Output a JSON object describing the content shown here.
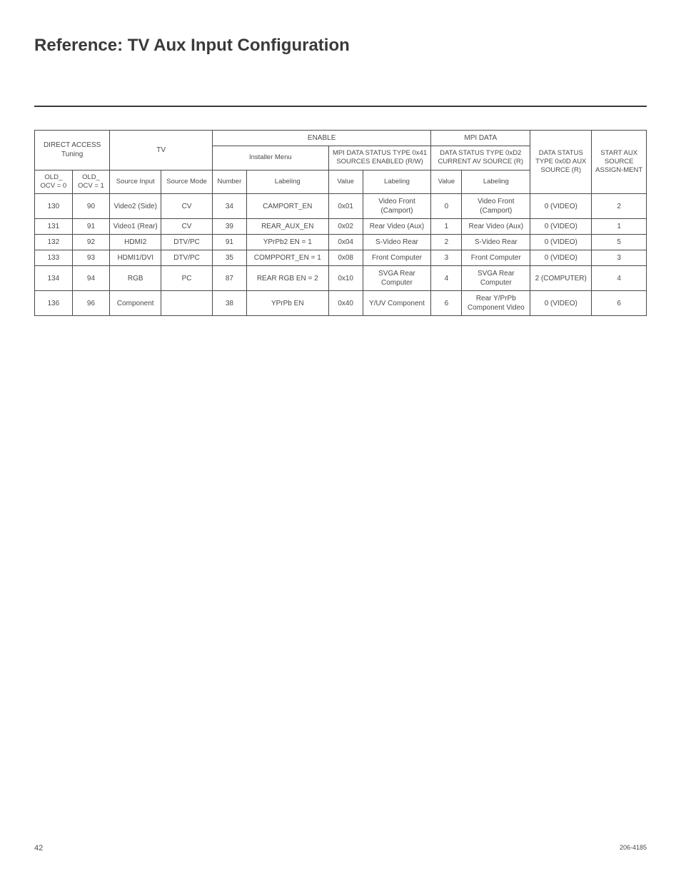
{
  "title": "Reference: TV Aux Input Configuration",
  "pageNumber": "42",
  "docNumber": "206-4185",
  "table": {
    "groupHeaders": {
      "directAccess": "DIRECT ACCESS Tuning",
      "tv": "TV",
      "enable": "ENABLE",
      "mpiData": "MPI DATA",
      "installerMenu": "Installer Menu",
      "mpiDataStatus": "MPI DATA STATUS TYPE 0x41 SOURCES ENABLED (R/W)",
      "dataStatusD2": "DATA STATUS TYPE 0xD2 CURRENT AV SOURCE (R)",
      "dataStatus0D": "DATA STATUS TYPE 0x0D AUX SOURCE (R)",
      "startAux": "START AUX SOURCE ASSIGN-MENT"
    },
    "colHeaders": {
      "oldOcv0": "OLD_ OCV = 0",
      "oldOcv1": "OLD_ OCV = 1",
      "sourceInput": "Source Input",
      "sourceMode": "Source Mode",
      "number": "Number",
      "labeling1": "Labeling",
      "value1": "Value",
      "labeling2": "Labeling",
      "value2": "Value",
      "labeling3": "Labeling"
    },
    "rows": [
      {
        "ocv0": "130",
        "ocv1": "90",
        "sourceInput": "Video2 (Side)",
        "sourceMode": "CV",
        "number": "34",
        "labeling1": "CAMPORT_EN",
        "value1": "0x01",
        "labeling2": "Video Front (Camport)",
        "value2": "0",
        "labeling3": "Video Front (Camport)",
        "dataStatus0D": "0 (VIDEO)",
        "startAux": "2"
      },
      {
        "ocv0": "131",
        "ocv1": "91",
        "sourceInput": "Video1 (Rear)",
        "sourceMode": "CV",
        "number": "39",
        "labeling1": "REAR_AUX_EN",
        "value1": "0x02",
        "labeling2": "Rear Video (Aux)",
        "value2": "1",
        "labeling3": "Rear Video (Aux)",
        "dataStatus0D": "0 (VIDEO)",
        "startAux": "1"
      },
      {
        "ocv0": "132",
        "ocv1": "92",
        "sourceInput": "HDMI2",
        "sourceMode": "DTV/PC",
        "number": "91",
        "labeling1": "YPrPb2 EN = 1",
        "value1": "0x04",
        "labeling2": "S-Video Rear",
        "value2": "2",
        "labeling3": "S-Video Rear",
        "dataStatus0D": "0 (VIDEO)",
        "startAux": "5"
      },
      {
        "ocv0": "133",
        "ocv1": "93",
        "sourceInput": "HDMI1/DVI",
        "sourceMode": "DTV/PC",
        "number": "35",
        "labeling1": "COMPPORT_EN = 1",
        "value1": "0x08",
        "labeling2": "Front Computer",
        "value2": "3",
        "labeling3": "Front Computer",
        "dataStatus0D": "0 (VIDEO)",
        "startAux": "3"
      },
      {
        "ocv0": "134",
        "ocv1": "94",
        "sourceInput": "RGB",
        "sourceMode": "PC",
        "number": "87",
        "labeling1": "REAR RGB EN = 2",
        "value1": "0x10",
        "labeling2": "SVGA Rear Computer",
        "value2": "4",
        "labeling3": "SVGA Rear Computer",
        "dataStatus0D": "2 (COMPUTER)",
        "startAux": "4"
      },
      {
        "ocv0": "136",
        "ocv1": "96",
        "sourceInput": "Component",
        "sourceMode": "",
        "number": "38",
        "labeling1": "YPrPb EN",
        "value1": "0x40",
        "labeling2": "Y/UV Component",
        "value2": "6",
        "labeling3": "Rear Y/PrPb Component Video",
        "dataStatus0D": "0 (VIDEO)",
        "startAux": "6"
      }
    ]
  },
  "colWidths": {
    "ocv0": "5.5%",
    "ocv1": "5.5%",
    "sourceInput": "7.5%",
    "sourceMode": "7.5%",
    "number": "5%",
    "labeling1": "12%",
    "value1": "5%",
    "labeling2": "10%",
    "value2": "4.5%",
    "labeling3": "10%",
    "dataStatus0D": "9%",
    "startAux": "8%"
  }
}
